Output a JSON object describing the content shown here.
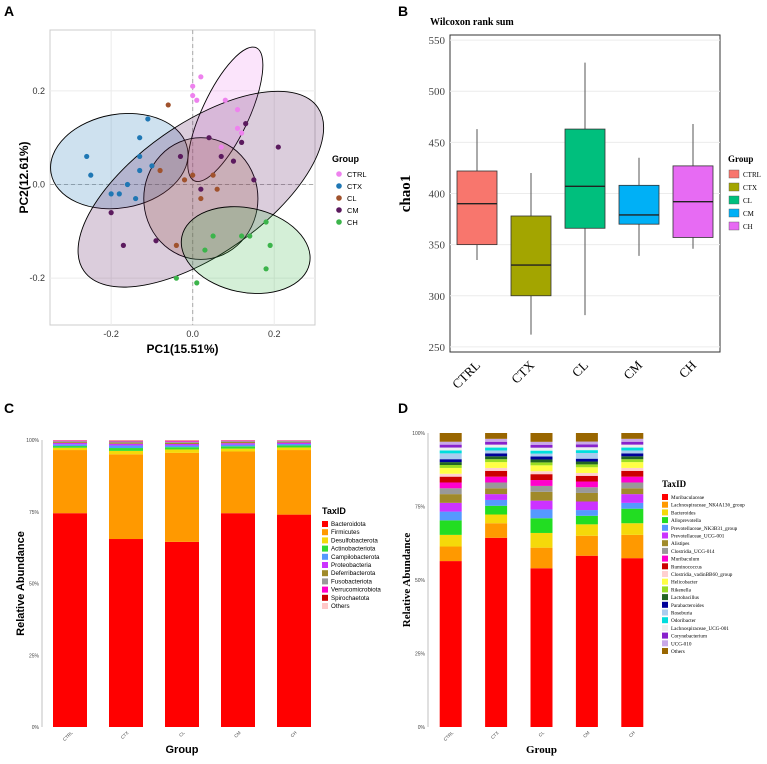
{
  "panels": {
    "a": "A",
    "b": "B",
    "c": "C",
    "d": "D"
  },
  "colors": {
    "CTRL": "#ee82ee",
    "CTX": "#1f77b4",
    "CL": "#a0522d",
    "CM": "#5b1a5e",
    "CH": "#3cb44b"
  },
  "chart_data": [
    {
      "panel": "A",
      "type": "scatter",
      "title": "",
      "xlabel": "PC1(15.51%)",
      "ylabel": "PC2(12.61%)",
      "xlim": [
        -0.35,
        0.3
      ],
      "ylim": [
        -0.3,
        0.33
      ],
      "xticks": [
        -0.2,
        0.0,
        0.2
      ],
      "xtick_labels": [
        "-0.2",
        "0.0",
        "0.2"
      ],
      "yticks": [
        -0.2,
        0.0,
        0.2
      ],
      "ytick_labels": [
        "-0.2",
        "0.0",
        "0.2"
      ],
      "legend_title": "Group",
      "series": [
        {
          "name": "CTRL",
          "points": [
            [
              0.02,
              0.23
            ],
            [
              0.0,
              0.21
            ],
            [
              0.01,
              0.18
            ],
            [
              0.0,
              0.19
            ],
            [
              0.08,
              0.18
            ],
            [
              0.11,
              0.16
            ],
            [
              0.11,
              0.12
            ],
            [
              0.07,
              0.08
            ],
            [
              0.12,
              0.11
            ]
          ]
        },
        {
          "name": "CTX",
          "points": [
            [
              -0.26,
              0.06
            ],
            [
              -0.25,
              0.02
            ],
            [
              -0.2,
              -0.02
            ],
            [
              -0.18,
              -0.02
            ],
            [
              -0.16,
              0.0
            ],
            [
              -0.14,
              -0.03
            ],
            [
              -0.13,
              0.06
            ],
            [
              -0.11,
              0.14
            ],
            [
              -0.13,
              0.1
            ],
            [
              -0.13,
              0.03
            ],
            [
              -0.1,
              0.04
            ]
          ]
        },
        {
          "name": "CL",
          "points": [
            [
              -0.06,
              0.17
            ],
            [
              -0.08,
              0.03
            ],
            [
              0.0,
              0.02
            ],
            [
              0.05,
              0.02
            ],
            [
              0.02,
              -0.03
            ],
            [
              0.06,
              -0.01
            ],
            [
              -0.02,
              0.01
            ],
            [
              -0.04,
              -0.13
            ]
          ]
        },
        {
          "name": "CM",
          "points": [
            [
              -0.2,
              -0.06
            ],
            [
              -0.17,
              -0.13
            ],
            [
              -0.09,
              -0.12
            ],
            [
              -0.03,
              0.06
            ],
            [
              0.04,
              0.1
            ],
            [
              0.07,
              0.06
            ],
            [
              0.12,
              0.09
            ],
            [
              0.13,
              0.13
            ],
            [
              0.21,
              0.08
            ],
            [
              0.1,
              0.05
            ],
            [
              0.15,
              0.01
            ],
            [
              0.02,
              -0.01
            ]
          ]
        },
        {
          "name": "CH",
          "points": [
            [
              0.18,
              -0.08
            ],
            [
              0.19,
              -0.13
            ],
            [
              0.14,
              -0.11
            ],
            [
              0.12,
              -0.11
            ],
            [
              0.18,
              -0.18
            ],
            [
              0.05,
              -0.11
            ],
            [
              0.03,
              -0.14
            ],
            [
              0.01,
              -0.21
            ],
            [
              -0.04,
              -0.2
            ]
          ]
        }
      ],
      "ellipses": [
        {
          "name": "CTRL",
          "cx": 0.08,
          "cy": 0.15,
          "rx": 0.18,
          "ry": 0.05,
          "angle_deg": 65
        },
        {
          "name": "CTX",
          "cx": -0.18,
          "cy": 0.05,
          "rx": 0.17,
          "ry": 0.1,
          "angle_deg": 10
        },
        {
          "name": "CL",
          "cx": 0.02,
          "cy": -0.03,
          "rx": 0.14,
          "ry": 0.13,
          "angle_deg": 0
        },
        {
          "name": "CM",
          "cx": 0.02,
          "cy": -0.01,
          "rx": 0.35,
          "ry": 0.14,
          "angle_deg": 35
        },
        {
          "name": "CH",
          "cx": 0.13,
          "cy": -0.14,
          "rx": 0.16,
          "ry": 0.09,
          "angle_deg": -12
        }
      ]
    },
    {
      "panel": "B",
      "type": "box",
      "title": "Wilcoxon rank sum",
      "xlabel": "",
      "ylabel": "chao1",
      "ylim": [
        245,
        555
      ],
      "yticks": [
        250,
        300,
        350,
        400,
        450,
        500,
        550
      ],
      "categories": [
        "CTRL",
        "CTX",
        "CL",
        "CM",
        "CH"
      ],
      "legend_title": "Group",
      "boxes": [
        {
          "name": "CTRL",
          "min": 335,
          "q1": 350,
          "median": 390,
          "q3": 422,
          "max": 463,
          "color": "#f8766d"
        },
        {
          "name": "CTX",
          "min": 262,
          "q1": 300,
          "median": 330,
          "q3": 378,
          "max": 420,
          "color": "#a3a500"
        },
        {
          "name": "CL",
          "min": 281,
          "q1": 366,
          "median": 407,
          "q3": 463,
          "max": 528,
          "color": "#00bf7d"
        },
        {
          "name": "CM",
          "min": 339,
          "q1": 370,
          "median": 379,
          "q3": 408,
          "max": 435,
          "color": "#00b0f6"
        },
        {
          "name": "CH",
          "min": 346,
          "q1": 357,
          "median": 392,
          "q3": 427,
          "max": 468,
          "color": "#e76bf3"
        }
      ]
    },
    {
      "panel": "C",
      "type": "stacked-bar",
      "xlabel": "Group",
      "ylabel": "Relative Abundance",
      "ylim": [
        0,
        100
      ],
      "ytick_labels": [
        "0%",
        "25%",
        "50%",
        "75%",
        "100%"
      ],
      "categories": [
        "CTRL",
        "CTX",
        "CL",
        "CM",
        "CH"
      ],
      "legend_title": "TaxID",
      "series": [
        {
          "name": "Bacteroidota",
          "color": "#ff0000",
          "values": [
            74.5,
            65.5,
            64.5,
            74.5,
            74.0
          ]
        },
        {
          "name": "Firmicutes",
          "color": "#ff9900",
          "values": [
            22.0,
            29.5,
            31.0,
            21.5,
            22.5
          ]
        },
        {
          "name": "Desulfobacterota",
          "color": "#f5d90a",
          "values": [
            0.8,
            1.2,
            1.2,
            1.0,
            0.9
          ]
        },
        {
          "name": "Actinobacteriota",
          "color": "#33dd33",
          "values": [
            0.6,
            1.0,
            0.8,
            0.8,
            0.7
          ]
        },
        {
          "name": "Campilobacterota",
          "color": "#5599ff",
          "values": [
            0.6,
            0.9,
            0.6,
            0.6,
            0.5
          ]
        },
        {
          "name": "Proteobacteria",
          "color": "#cc33ff",
          "values": [
            0.5,
            0.6,
            0.5,
            0.5,
            0.5
          ]
        },
        {
          "name": "Deferribacterota",
          "color": "#a08a2a",
          "values": [
            0.3,
            0.4,
            0.4,
            0.4,
            0.3
          ]
        },
        {
          "name": "Fusobacteriota",
          "color": "#999999",
          "values": [
            0.3,
            0.4,
            0.4,
            0.3,
            0.3
          ]
        },
        {
          "name": "Verrucomicrobiota",
          "color": "#ff00cc",
          "values": [
            0.2,
            0.2,
            0.3,
            0.2,
            0.1
          ]
        },
        {
          "name": "Spirochaetota",
          "color": "#cc0000",
          "values": [
            0.1,
            0.1,
            0.1,
            0.1,
            0.1
          ]
        },
        {
          "name": "Others",
          "color": "#ffc8c8",
          "values": [
            0.1,
            0.2,
            0.2,
            0.1,
            0.1
          ]
        }
      ]
    },
    {
      "panel": "D",
      "type": "stacked-bar",
      "xlabel": "Group",
      "ylabel": "Relative Abundance",
      "ylim": [
        0,
        100
      ],
      "ytick_labels": [
        "0%",
        "25%",
        "50%",
        "75%",
        "100%"
      ],
      "categories": [
        "CTRL",
        "CTX",
        "CL",
        "CM",
        "CH"
      ],
      "legend_title": "TaxID",
      "series": [
        {
          "name": "Muribaculaceae",
          "color": "#ff0000",
          "values": [
            57,
            65,
            54,
            60,
            58
          ]
        },
        {
          "name": "Lachnospiraceae_NK4A136_group",
          "color": "#ff9900",
          "values": [
            5,
            5,
            7,
            7,
            8
          ]
        },
        {
          "name": "Bacteroides",
          "color": "#f5d90a",
          "values": [
            4,
            3,
            5,
            4,
            4
          ]
        },
        {
          "name": "Alloprevotella",
          "color": "#22dd22",
          "values": [
            5,
            3,
            5,
            3,
            5
          ]
        },
        {
          "name": "Prevotellaceae_NK3B31_group",
          "color": "#5599ff",
          "values": [
            3,
            2,
            3,
            2,
            2
          ]
        },
        {
          "name": "Prevotellaceae_UCG-001",
          "color": "#cc33ff",
          "values": [
            3,
            2,
            3,
            3,
            3
          ]
        },
        {
          "name": "Alistipes",
          "color": "#a08a2a",
          "values": [
            3,
            2,
            3,
            3,
            2
          ]
        },
        {
          "name": "Clostridia_UCG-014",
          "color": "#999999",
          "values": [
            2,
            2,
            2,
            2,
            2
          ]
        },
        {
          "name": "Muribaculum",
          "color": "#ff00cc",
          "values": [
            2,
            2,
            2,
            2,
            2
          ]
        },
        {
          "name": "Ruminococcus",
          "color": "#cc0000",
          "values": [
            2,
            2,
            2,
            2,
            2
          ]
        },
        {
          "name": "Clostridia_vadinBB60_group",
          "color": "#ffd0d0",
          "values": [
            1,
            1,
            1,
            1,
            1
          ]
        },
        {
          "name": "Helicobacter",
          "color": "#ffff44",
          "values": [
            2,
            2,
            2,
            2,
            2
          ]
        },
        {
          "name": "Rikenella",
          "color": "#99dd22",
          "values": [
            1,
            1,
            1,
            1,
            1
          ]
        },
        {
          "name": "Lactobacillus",
          "color": "#226622",
          "values": [
            1,
            1,
            1,
            1,
            1
          ]
        },
        {
          "name": "Parabacteroides",
          "color": "#000099",
          "values": [
            1,
            1,
            1,
            1,
            1
          ]
        },
        {
          "name": "Roseburia",
          "color": "#aaccee",
          "values": [
            2,
            1,
            1,
            2,
            1
          ]
        },
        {
          "name": "Odoribacter",
          "color": "#00dddd",
          "values": [
            1,
            1,
            1,
            1,
            1
          ]
        },
        {
          "name": "Lachnospiraceae_UCG-001",
          "color": "#eeeeee",
          "values": [
            1,
            1,
            1,
            1,
            1
          ]
        },
        {
          "name": "Corynebacterium",
          "color": "#8822cc",
          "values": [
            1,
            1,
            1,
            1,
            1
          ]
        },
        {
          "name": "UCG-010",
          "color": "#c8a8e8",
          "values": [
            1,
            1,
            1,
            1,
            1
          ]
        },
        {
          "name": "Others",
          "color": "#996600",
          "values": [
            3,
            2,
            3,
            3,
            2
          ]
        }
      ]
    }
  ]
}
